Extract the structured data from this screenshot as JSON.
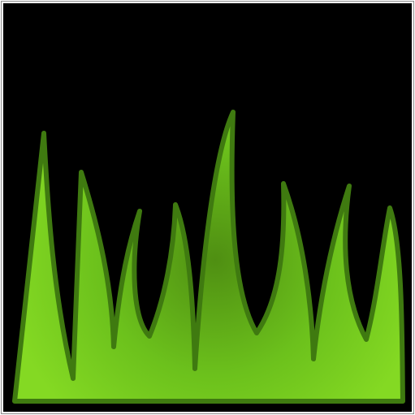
{
  "icon": {
    "name": "grass-icon",
    "background": "#000000",
    "border": "#8c8c8c",
    "fill_light": "#7ed321",
    "fill_dark": "#4f8f12",
    "stroke": "#3f7a10"
  }
}
